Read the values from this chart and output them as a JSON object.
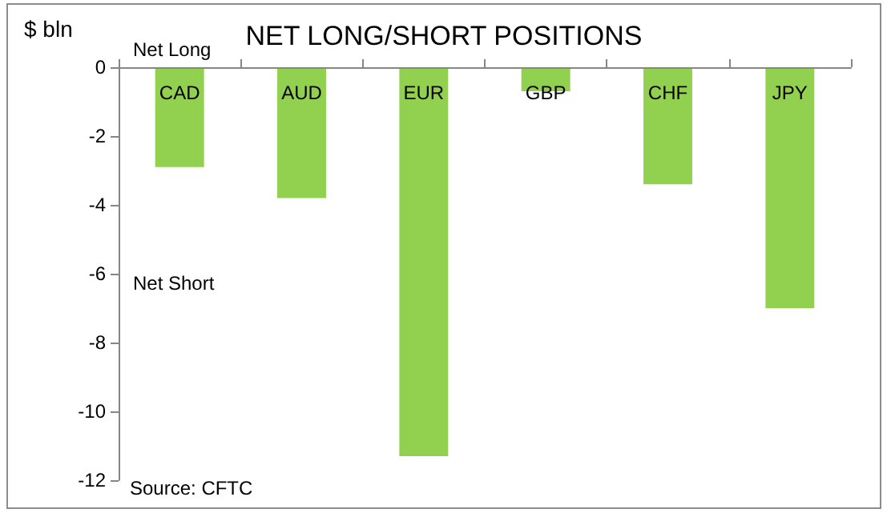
{
  "chart_data": {
    "type": "bar",
    "title": "NET LONG/SHORT POSITIONS",
    "ylabel": "$ bln",
    "categories": [
      "CAD",
      "AUD",
      "EUR",
      "GBP",
      "CHF",
      "JPY"
    ],
    "values": [
      -2.9,
      -3.8,
      -11.3,
      -0.7,
      -3.4,
      -7.0
    ],
    "color": "#92d050",
    "ylim": [
      -12,
      0
    ],
    "yticks": [
      -12,
      -10,
      -8,
      -6,
      -4,
      -2,
      0
    ],
    "grid": false,
    "annotations": [
      "Net Long",
      "Net Short",
      "Source: CFTC"
    ]
  }
}
